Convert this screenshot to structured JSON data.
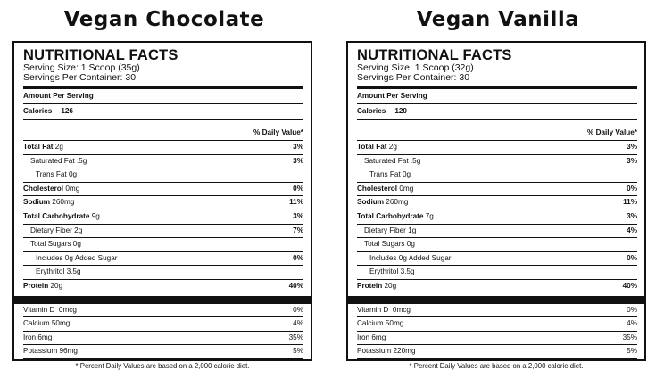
{
  "products": [
    {
      "title": "Vegan Chocolate",
      "facts_title": "NUTRITIONAL FACTS",
      "serving_size": "Serving Size: 1 Scoop (35g)",
      "servings_per_container": "Servings Per Container: 30",
      "amount_per_serving": "Amount Per Serving",
      "calories_label": "Calories",
      "calories_value": "126",
      "daily_value_header": "% Daily Value*",
      "rows": [
        {
          "bold": "Total Fat",
          "rest": " 2g",
          "dv": "3%"
        },
        {
          "bold": "",
          "rest": "Saturated Fat .5g",
          "dv": "3%"
        },
        {
          "bold": "",
          "rest": "Trans Fat 0g",
          "dv": ""
        },
        {
          "bold": "Cholesterol",
          "rest": " 0mg",
          "dv": "0%"
        },
        {
          "bold": "Sodium",
          "rest": " 260mg",
          "dv": "11%"
        },
        {
          "bold": "Total Carbohydrate",
          "rest": " 9g",
          "dv": "3%"
        },
        {
          "bold": "",
          "rest": "Dietary Fiber 2g",
          "dv": "7%"
        },
        {
          "bold": "",
          "rest": "Total Sugars 0g",
          "dv": ""
        },
        {
          "bold": "",
          "rest": "Includes 0g Added Sugar",
          "dv": "0%"
        },
        {
          "bold": "",
          "rest": "Erythritol 3.5g",
          "dv": ""
        },
        {
          "bold": "Protein",
          "rest": " 20g",
          "dv": "40%"
        }
      ],
      "minerals": [
        {
          "name": "Vitamin D  0mcg",
          "dv": "0%"
        },
        {
          "name": "Calcium 50mg",
          "dv": "4%"
        },
        {
          "name": "Iron 6mg",
          "dv": "35%"
        },
        {
          "name": "Potassium 96mg",
          "dv": "5%"
        }
      ],
      "footnote": "* Percent Daily Values are based on a 2,000 calorie diet."
    },
    {
      "title": "Vegan Vanilla",
      "facts_title": "NUTRITIONAL FACTS",
      "serving_size": "Serving Size: 1 Scoop (32g)",
      "servings_per_container": "Servings Per Container: 30",
      "amount_per_serving": "Amount Per Serving",
      "calories_label": "Calories",
      "calories_value": "120",
      "daily_value_header": "% Daily Value*",
      "rows": [
        {
          "bold": "Total Fat",
          "rest": " 2g",
          "dv": "3%"
        },
        {
          "bold": "",
          "rest": "Saturated Fat .5g",
          "dv": "3%"
        },
        {
          "bold": "",
          "rest": "Trans Fat 0g",
          "dv": ""
        },
        {
          "bold": "Cholesterol",
          "rest": " 0mg",
          "dv": "0%"
        },
        {
          "bold": "Sodium",
          "rest": " 260mg",
          "dv": "11%"
        },
        {
          "bold": "Total Carbohydrate",
          "rest": " 7g",
          "dv": "3%"
        },
        {
          "bold": "",
          "rest": "Dietary Fiber 1g",
          "dv": "4%"
        },
        {
          "bold": "",
          "rest": "Total Sugars 0g",
          "dv": ""
        },
        {
          "bold": "",
          "rest": "Includes 0g Added Sugar",
          "dv": "0%"
        },
        {
          "bold": "",
          "rest": "Erythritol 3.5g",
          "dv": ""
        },
        {
          "bold": "Protein",
          "rest": " 20g",
          "dv": "40%"
        }
      ],
      "minerals": [
        {
          "name": "Vitamin D  0mcg",
          "dv": "0%"
        },
        {
          "name": "Calcium 50mg",
          "dv": "4%"
        },
        {
          "name": "Iron 6mg",
          "dv": "35%"
        },
        {
          "name": "Potassium 220mg",
          "dv": "5%"
        }
      ],
      "footnote": "* Percent Daily Values are based on a 2,000 calorie diet."
    }
  ]
}
